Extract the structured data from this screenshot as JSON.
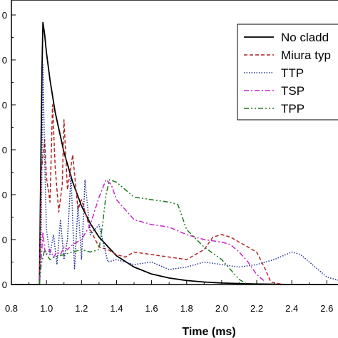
{
  "chart_data": {
    "type": "line",
    "title": "",
    "xlabel": "Time (ms)",
    "ylabel": "",
    "xlim": [
      0.8,
      2.68
    ],
    "ylim": [
      0,
      1.14
    ],
    "x_ticks": [
      "0.8",
      "1.0",
      "1.2",
      "1.4",
      "1.6",
      "1.8",
      "2.0",
      "2.2",
      "2.4",
      "2.6"
    ],
    "y_tick_labels": [
      "0",
      "0",
      "0",
      "0",
      "0",
      "0",
      "0"
    ],
    "legend_position": "top-right",
    "grid": false,
    "series": [
      {
        "name": "No cladd",
        "color": "#000000",
        "dash": "solid",
        "x": [
          0.8,
          0.96,
          0.965,
          0.97,
          0.975,
          0.98,
          0.99,
          1.0,
          1.02,
          1.05,
          1.1,
          1.15,
          1.2,
          1.25,
          1.3,
          1.4,
          1.5,
          1.6,
          1.7,
          1.8,
          1.9,
          2.0,
          2.1,
          2.2,
          2.3,
          2.4,
          2.5,
          2.6,
          2.68
        ],
        "y": [
          0,
          0,
          0.3,
          0.62,
          0.88,
          1.05,
          1.0,
          0.93,
          0.82,
          0.69,
          0.53,
          0.41,
          0.315,
          0.245,
          0.19,
          0.115,
          0.07,
          0.042,
          0.026,
          0.016,
          0.01,
          0.006,
          0.004,
          0.002,
          0.001,
          0,
          0,
          0,
          0
        ]
      },
      {
        "name": "Miura typ",
        "color": "#b22222",
        "dash": "dashed",
        "x": [
          0.8,
          0.96,
          0.97,
          0.99,
          1.0,
          1.02,
          1.035,
          1.05,
          1.07,
          1.09,
          1.1,
          1.12,
          1.15,
          1.18,
          1.2,
          1.25,
          1.3,
          1.35,
          1.4,
          1.45,
          1.5,
          1.6,
          1.7,
          1.8,
          1.9,
          1.95,
          2.0,
          2.05,
          2.1,
          2.15,
          2.2,
          2.25,
          2.28,
          2.35
        ],
        "y": [
          0,
          0,
          0.45,
          0.58,
          0.43,
          0.33,
          0.72,
          0.47,
          0.29,
          0.4,
          0.66,
          0.38,
          0.52,
          0.3,
          0.34,
          0.22,
          0.15,
          0.14,
          0.12,
          0.11,
          0.13,
          0.12,
          0.11,
          0.1,
          0.14,
          0.19,
          0.2,
          0.19,
          0.17,
          0.15,
          0.13,
          0.06,
          0.01,
          0
        ]
      },
      {
        "name": "TTP",
        "color": "#1f2d8f",
        "dash": "dotted",
        "x": [
          0.8,
          0.96,
          0.97,
          0.98,
          0.99,
          1.0,
          1.02,
          1.04,
          1.06,
          1.08,
          1.1,
          1.12,
          1.14,
          1.16,
          1.18,
          1.2,
          1.22,
          1.25,
          1.3,
          1.35,
          1.4,
          1.5,
          1.6,
          1.7,
          1.8,
          1.9,
          2.0,
          2.1,
          2.2,
          2.3,
          2.4,
          2.45,
          2.5,
          2.55,
          2.6,
          2.65,
          2.68
        ],
        "y": [
          0,
          0,
          0.2,
          0.88,
          0.5,
          0.22,
          0.12,
          0.2,
          0.08,
          0.26,
          0.1,
          0.18,
          0.44,
          0.06,
          0.32,
          0.1,
          0.42,
          0.2,
          0.24,
          0.09,
          0.1,
          0.08,
          0.09,
          0.06,
          0.07,
          0.09,
          0.08,
          0.07,
          0.08,
          0.1,
          0.13,
          0.12,
          0.09,
          0.06,
          0.03,
          0.02,
          0.015
        ]
      },
      {
        "name": "TSP",
        "color": "#cc22cc",
        "dash": "dashdot",
        "x": [
          0.8,
          0.96,
          0.97,
          0.98,
          0.99,
          1.0,
          1.02,
          1.04,
          1.06,
          1.08,
          1.1,
          1.12,
          1.15,
          1.2,
          1.25,
          1.3,
          1.34,
          1.37,
          1.4,
          1.45,
          1.5,
          1.6,
          1.7,
          1.8,
          1.9,
          2.0,
          2.05,
          2.1,
          2.15,
          2.2,
          2.25
        ],
        "y": [
          0,
          0,
          0.1,
          0.21,
          0.14,
          0.12,
          0.14,
          0.11,
          0.13,
          0.12,
          0.15,
          0.14,
          0.16,
          0.18,
          0.24,
          0.35,
          0.42,
          0.4,
          0.34,
          0.3,
          0.26,
          0.24,
          0.23,
          0.2,
          0.18,
          0.17,
          0.16,
          0.13,
          0.09,
          0.04,
          0.01
        ]
      },
      {
        "name": "TPP",
        "color": "#1e7a1e",
        "dash": "dashdotdot",
        "x": [
          0.8,
          0.96,
          0.97,
          0.99,
          1.0,
          1.02,
          1.05,
          1.1,
          1.15,
          1.2,
          1.25,
          1.3,
          1.32,
          1.34,
          1.36,
          1.4,
          1.45,
          1.5,
          1.6,
          1.7,
          1.75,
          1.8,
          1.9,
          2.0,
          2.05,
          2.1,
          2.15
        ],
        "y": [
          0,
          0,
          0.08,
          0.14,
          0.12,
          0.1,
          0.11,
          0.12,
          0.13,
          0.14,
          0.13,
          0.14,
          0.24,
          0.36,
          0.42,
          0.41,
          0.38,
          0.35,
          0.34,
          0.33,
          0.32,
          0.22,
          0.15,
          0.1,
          0.06,
          0.02,
          0
        ]
      }
    ]
  }
}
